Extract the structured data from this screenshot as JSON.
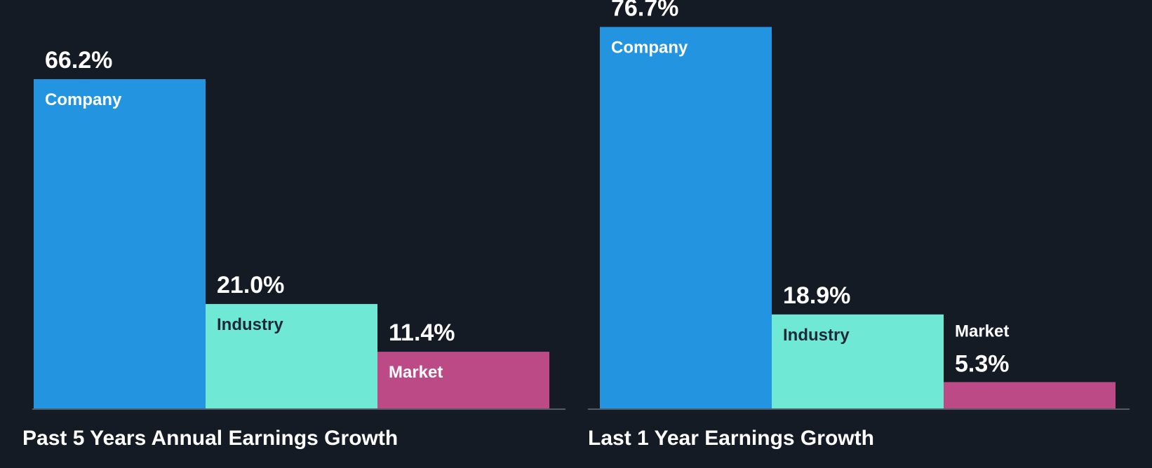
{
  "chart_data": [
    {
      "type": "bar",
      "title": "Past 5 Years Annual Earnings Growth",
      "categories": [
        "Company",
        "Industry",
        "Market"
      ],
      "values": [
        66.2,
        21.0,
        11.4
      ],
      "value_labels": [
        "66.2%",
        "21.0%",
        "11.4%"
      ],
      "ylim": [
        0,
        80
      ],
      "xlabel": "",
      "ylabel": "",
      "grid": false,
      "legend": "none"
    },
    {
      "type": "bar",
      "title": "Last 1 Year Earnings Growth",
      "categories": [
        "Company",
        "Industry",
        "Market"
      ],
      "values": [
        76.7,
        18.9,
        5.3
      ],
      "value_labels": [
        "76.7%",
        "18.9%",
        "5.3%"
      ],
      "ylim": [
        0,
        80
      ],
      "xlabel": "",
      "ylabel": "",
      "grid": false,
      "legend": "none"
    }
  ],
  "colors": {
    "background": "#151b24",
    "company": "#2394e0",
    "industry": "#6fe8d6",
    "market": "#bc4a87",
    "baseline": "#555b66",
    "text_light": "#ffffff",
    "text_dark": "#1f2a36"
  }
}
